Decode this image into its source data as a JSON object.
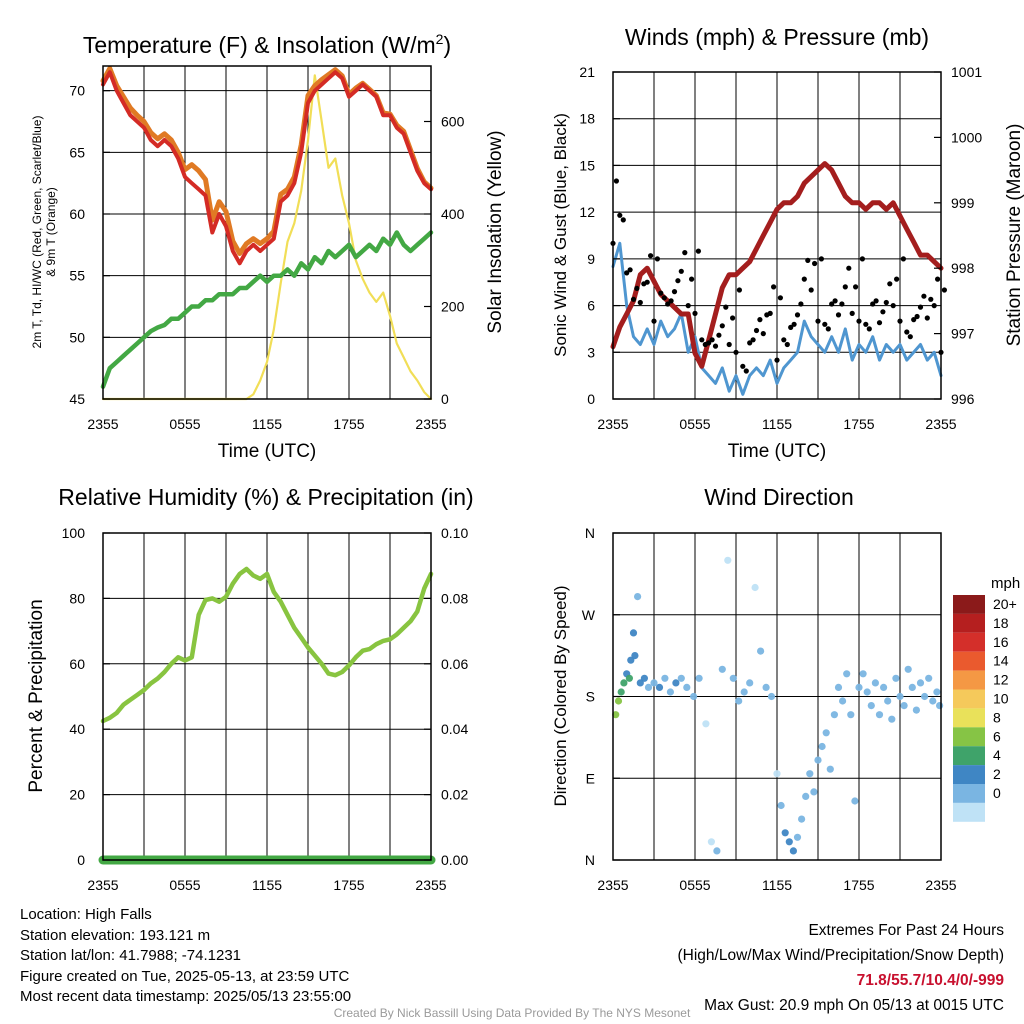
{
  "colors": {
    "temp": "#d42b25",
    "dewpoint": "#43a844",
    "heat_index": "#e07a24",
    "insolation": "#f1de57",
    "wind": "#4f96d0",
    "gust": "#000000",
    "pressure": "#a41e1e",
    "humidity": "#88c440",
    "precip": "#43a844"
  },
  "x_ticks": [
    "2355",
    "0555",
    "1155",
    "1755",
    "2355"
  ],
  "chart_data": [
    {
      "type": "line",
      "title_main": "Temperature (F) & Insolation (W/m",
      "title_sup": "2",
      "title_end": ")",
      "xlabel": "Time (UTC)",
      "ylabel_left_line1": "2m T, Td, HI/WC (Red, Green, Scarlet/Blue)",
      "ylabel_left_line2": "& 9m T (Orange)",
      "ylabel_right": "Solar Insolation (Yellow)",
      "ylim": [
        45,
        72
      ],
      "ylim_right": [
        0,
        720
      ],
      "yticks": [
        "45",
        "50",
        "55",
        "60",
        "65",
        "70"
      ],
      "yticks_right": [
        "0",
        "200",
        "400",
        "600"
      ],
      "x_hours": [
        0,
        0.5,
        1,
        1.5,
        2,
        2.5,
        3,
        3.5,
        4,
        4.5,
        5,
        5.5,
        6,
        6.5,
        7,
        7.5,
        8,
        8.5,
        9,
        9.5,
        10,
        10.5,
        11,
        11.5,
        12,
        12.5,
        13,
        13.5,
        14,
        14.5,
        15,
        15.5,
        16,
        16.5,
        17,
        17.5,
        18,
        18.5,
        19,
        19.5,
        20,
        20.5,
        21,
        21.5,
        22,
        22.5,
        23,
        23.5,
        24
      ],
      "series": [
        {
          "key": "temp",
          "values": [
            70.5,
            71.5,
            70.0,
            69.0,
            68.0,
            67.5,
            67.0,
            66.0,
            65.5,
            66.0,
            65.5,
            64.5,
            63.0,
            62.5,
            62.0,
            61.5,
            58.5,
            60.0,
            59.0,
            57.0,
            56.0,
            57.0,
            57.5,
            57.0,
            57.5,
            58.0,
            61.0,
            61.5,
            62.5,
            65.0,
            69.0,
            70.0,
            70.5,
            71.0,
            71.5,
            71.0,
            69.5,
            70.0,
            70.5,
            70.0,
            69.5,
            68.0,
            68.0,
            67.0,
            66.5,
            65.0,
            63.5,
            62.5,
            62.0
          ]
        },
        {
          "key": "heat_index",
          "values": [
            70.8,
            71.8,
            70.4,
            69.5,
            68.6,
            68.0,
            67.5,
            66.6,
            66.1,
            66.5,
            66.0,
            65.0,
            63.6,
            64.0,
            63.5,
            62.8,
            59.5,
            61.0,
            60.2,
            57.8,
            56.8,
            57.6,
            58.0,
            57.6,
            58.0,
            58.6,
            61.6,
            62.0,
            63.0,
            65.6,
            69.6,
            70.4,
            70.9,
            71.3,
            71.7,
            71.2,
            69.7,
            70.2,
            70.6,
            70.1,
            69.6,
            68.2,
            68.1,
            67.2,
            66.7,
            65.2,
            63.7,
            62.6,
            62.1
          ]
        },
        {
          "key": "dewpoint",
          "values": [
            46.0,
            47.5,
            48.0,
            48.5,
            49.0,
            49.5,
            50.0,
            50.5,
            50.8,
            51.0,
            51.5,
            51.5,
            52.0,
            52.5,
            52.5,
            53.0,
            53.0,
            53.5,
            53.5,
            53.5,
            54.0,
            54.0,
            54.5,
            55.0,
            54.5,
            55.0,
            55.0,
            55.5,
            55.0,
            56.0,
            55.5,
            56.5,
            56.0,
            57.0,
            56.5,
            57.0,
            57.5,
            56.5,
            57.0,
            57.5,
            57.0,
            58.0,
            57.5,
            58.5,
            57.5,
            57.0,
            57.5,
            58.0,
            58.5
          ]
        },
        {
          "key": "insolation",
          "values": [
            0,
            0,
            0,
            0,
            0,
            0,
            0,
            0,
            0,
            0,
            0,
            0,
            0,
            0,
            0,
            0,
            0,
            0,
            0,
            0,
            0,
            0,
            10,
            40,
            80,
            150,
            250,
            340,
            380,
            450,
            560,
            700,
            600,
            500,
            520,
            440,
            380,
            300,
            260,
            230,
            210,
            230,
            180,
            120,
            90,
            60,
            40,
            15,
            0
          ]
        }
      ]
    },
    {
      "type": "line",
      "title": "Winds (mph) & Pressure (mb)",
      "xlabel": "Time (UTC)",
      "ylabel_left": "Sonic Wind & Gust (Blue, Black)",
      "ylabel_right": "Station Pressure (Maroon)",
      "ylim": [
        0,
        21
      ],
      "ylim_right": [
        996,
        1001
      ],
      "yticks": [
        "0",
        "3",
        "6",
        "9",
        "12",
        "15",
        "18",
        "21"
      ],
      "yticks_right": [
        "996",
        "997",
        "998",
        "999",
        "1000",
        "1001"
      ],
      "x_hours": [
        0,
        0.5,
        1,
        1.5,
        2,
        2.5,
        3,
        3.5,
        4,
        4.5,
        5,
        5.5,
        6,
        6.5,
        7,
        7.5,
        8,
        8.5,
        9,
        9.5,
        10,
        10.5,
        11,
        11.5,
        12,
        12.5,
        13,
        13.5,
        14,
        14.5,
        15,
        15.5,
        16,
        16.5,
        17,
        17.5,
        18,
        18.5,
        19,
        19.5,
        20,
        20.5,
        21,
        21.5,
        22,
        22.5,
        23,
        23.5,
        24
      ],
      "series": [
        {
          "key": "wind",
          "values": [
            8.5,
            10.0,
            6.0,
            4.0,
            3.5,
            4.5,
            3.5,
            5.0,
            4.0,
            4.5,
            5.5,
            3.0,
            4.0,
            2.0,
            1.5,
            1.0,
            2.0,
            0.5,
            1.5,
            0.3,
            1.5,
            2.0,
            1.5,
            2.5,
            1.0,
            2.0,
            2.5,
            3.0,
            5.0,
            4.0,
            3.5,
            3.0,
            4.0,
            3.0,
            4.5,
            2.5,
            3.5,
            3.0,
            4.0,
            2.5,
            3.5,
            3.0,
            3.5,
            2.5,
            3.0,
            3.5,
            2.5,
            3.0,
            1.5
          ]
        },
        {
          "key": "pressure",
          "values": [
            996.8,
            997.1,
            997.3,
            997.5,
            997.9,
            998.0,
            997.8,
            997.6,
            997.5,
            997.4,
            997.3,
            997.3,
            996.7,
            996.5,
            996.9,
            997.3,
            997.7,
            997.9,
            997.9,
            998.0,
            998.1,
            998.3,
            998.5,
            998.7,
            998.9,
            999.0,
            999.0,
            999.1,
            999.3,
            999.4,
            999.5,
            999.6,
            999.5,
            999.3,
            999.1,
            999.0,
            999.0,
            998.9,
            999.0,
            999.0,
            998.9,
            999.0,
            998.8,
            998.6,
            998.4,
            998.2,
            998.2,
            998.1,
            998.0
          ]
        }
      ]
    },
    {
      "type": "line",
      "title": "Relative Humidity (%) & Precipitation (in)",
      "ylabel_left": "Percent & Precipitation",
      "ylim": [
        0,
        100
      ],
      "ylim_right": [
        0,
        0.1
      ],
      "yticks": [
        "0",
        "20",
        "40",
        "60",
        "80",
        "100"
      ],
      "yticks_right": [
        "0.00",
        "0.02",
        "0.04",
        "0.06",
        "0.08",
        "0.10"
      ],
      "x_hours": [
        0,
        0.5,
        1,
        1.5,
        2,
        2.5,
        3,
        3.5,
        4,
        4.5,
        5,
        5.5,
        6,
        6.5,
        7,
        7.5,
        8,
        8.5,
        9,
        9.5,
        10,
        10.5,
        11,
        11.5,
        12,
        12.5,
        13,
        13.5,
        14,
        14.5,
        15,
        15.5,
        16,
        16.5,
        17,
        17.5,
        18,
        18.5,
        19,
        19.5,
        20,
        20.5,
        21,
        21.5,
        22,
        22.5,
        23,
        23.5,
        24
      ],
      "series": [
        {
          "key": "humidity",
          "values": [
            42.5,
            43.5,
            45.0,
            47.5,
            49.0,
            50.5,
            52.0,
            54.0,
            55.5,
            57.5,
            60.0,
            62.0,
            61.0,
            62.0,
            75.0,
            79.5,
            80.0,
            79.0,
            80.5,
            84.5,
            87.5,
            89.0,
            87.0,
            86.0,
            87.5,
            82.0,
            79.0,
            75.0,
            71.0,
            68.0,
            65.0,
            62.5,
            60.0,
            57.0,
            56.5,
            57.5,
            59.5,
            62.0,
            64.0,
            64.5,
            66.0,
            67.0,
            67.5,
            69.0,
            71.0,
            73.0,
            76.0,
            83.0,
            87.5
          ]
        },
        {
          "key": "precip",
          "values": [
            0,
            0,
            0,
            0,
            0,
            0,
            0,
            0,
            0,
            0,
            0,
            0,
            0,
            0,
            0,
            0,
            0,
            0,
            0,
            0,
            0,
            0,
            0,
            0,
            0,
            0,
            0,
            0,
            0,
            0,
            0,
            0,
            0,
            0,
            0,
            0,
            0,
            0,
            0,
            0,
            0,
            0,
            0,
            0,
            0,
            0,
            0,
            0,
            0
          ]
        }
      ]
    },
    {
      "type": "scatter",
      "title": "Wind Direction",
      "ylabel_left": "Direction (Colored By Speed)",
      "yticks": [
        "N",
        "E",
        "S",
        "W",
        "N"
      ],
      "colorbar_unit": "mph",
      "colorbar_labels": [
        "20+",
        "18",
        "16",
        "14",
        "12",
        "10",
        "8",
        "6",
        "4",
        "2",
        "0"
      ],
      "colorbar_colors": [
        "#8b1a1a",
        "#b51f1f",
        "#d42f2a",
        "#ea5a2e",
        "#f49844",
        "#f5c95b",
        "#e9e15a",
        "#86c445",
        "#3fa36a",
        "#3f86c4",
        "#7ab5e2",
        "#bfe2f6"
      ],
      "points_hour_dir_speed": [
        [
          0.2,
          160,
          9
        ],
        [
          0.4,
          175,
          8
        ],
        [
          0.6,
          185,
          7
        ],
        [
          0.8,
          195,
          6
        ],
        [
          1.0,
          205,
          5
        ],
        [
          1.2,
          200,
          6
        ],
        [
          1.3,
          220,
          5
        ],
        [
          1.5,
          250,
          4
        ],
        [
          1.6,
          225,
          4
        ],
        [
          1.8,
          290,
          3
        ],
        [
          2.0,
          195,
          4
        ],
        [
          2.3,
          200,
          4
        ],
        [
          2.6,
          190,
          3
        ],
        [
          3.0,
          195,
          3
        ],
        [
          3.4,
          190,
          4
        ],
        [
          3.8,
          200,
          3
        ],
        [
          4.2,
          185,
          3
        ],
        [
          4.6,
          195,
          4
        ],
        [
          5.0,
          200,
          3
        ],
        [
          5.4,
          190,
          3
        ],
        [
          5.9,
          180,
          2
        ],
        [
          6.3,
          200,
          2
        ],
        [
          6.8,
          150,
          1
        ],
        [
          7.2,
          20,
          1
        ],
        [
          7.6,
          10,
          2
        ],
        [
          8.0,
          210,
          2
        ],
        [
          8.4,
          330,
          1
        ],
        [
          8.8,
          200,
          2
        ],
        [
          9.2,
          175,
          2
        ],
        [
          9.6,
          185,
          3
        ],
        [
          10.0,
          195,
          3
        ],
        [
          10.4,
          300,
          1
        ],
        [
          10.8,
          230,
          2
        ],
        [
          11.2,
          190,
          3
        ],
        [
          11.6,
          180,
          2
        ],
        [
          12.0,
          95,
          1
        ],
        [
          12.3,
          60,
          2
        ],
        [
          12.6,
          30,
          4
        ],
        [
          12.9,
          20,
          4
        ],
        [
          13.2,
          10,
          4
        ],
        [
          13.5,
          25,
          3
        ],
        [
          13.8,
          45,
          3
        ],
        [
          14.1,
          70,
          2
        ],
        [
          14.4,
          95,
          2
        ],
        [
          14.7,
          75,
          3
        ],
        [
          15.0,
          110,
          2
        ],
        [
          15.3,
          125,
          3
        ],
        [
          15.6,
          140,
          2
        ],
        [
          15.9,
          100,
          2
        ],
        [
          16.2,
          160,
          2
        ],
        [
          16.5,
          190,
          2
        ],
        [
          16.8,
          175,
          3
        ],
        [
          17.1,
          205,
          3
        ],
        [
          17.4,
          160,
          2
        ],
        [
          17.7,
          65,
          2
        ],
        [
          18.0,
          190,
          2
        ],
        [
          18.3,
          205,
          3
        ],
        [
          18.6,
          185,
          3
        ],
        [
          18.9,
          170,
          2
        ],
        [
          19.2,
          195,
          2
        ],
        [
          19.5,
          160,
          3
        ],
        [
          19.8,
          190,
          2
        ],
        [
          20.1,
          175,
          3
        ],
        [
          20.4,
          155,
          3
        ],
        [
          20.7,
          200,
          2
        ],
        [
          21.0,
          180,
          2
        ],
        [
          21.3,
          170,
          3
        ],
        [
          21.6,
          210,
          2
        ],
        [
          21.9,
          190,
          2
        ],
        [
          22.2,
          165,
          3
        ],
        [
          22.5,
          195,
          2
        ],
        [
          22.8,
          180,
          3
        ],
        [
          23.1,
          200,
          2
        ],
        [
          23.4,
          175,
          2
        ],
        [
          23.7,
          185,
          3
        ],
        [
          23.9,
          170,
          2
        ]
      ]
    }
  ],
  "footer": {
    "location": "Location: High Falls",
    "elevation": "Station elevation: 193.121 m",
    "latlon": "Station lat/lon: 41.7988; -74.1231",
    "created": "Figure created on Tue, 2025-05-13, at 23:59 UTC",
    "recent": "Most recent data timestamp: 2025/05/13 23:55:00",
    "extremes_title": "Extremes For Past 24 Hours",
    "extremes_legend": "(High/Low/Max Wind/Precipitation/Snow Depth)",
    "extremes_values": "71.8/55.7/10.4/0/-999",
    "max_gust": "Max Gust: 20.9 mph On 05/13 at 0015 UTC",
    "credit": "Created By Nick Bassill Using Data Provided By The NYS Mesonet"
  }
}
